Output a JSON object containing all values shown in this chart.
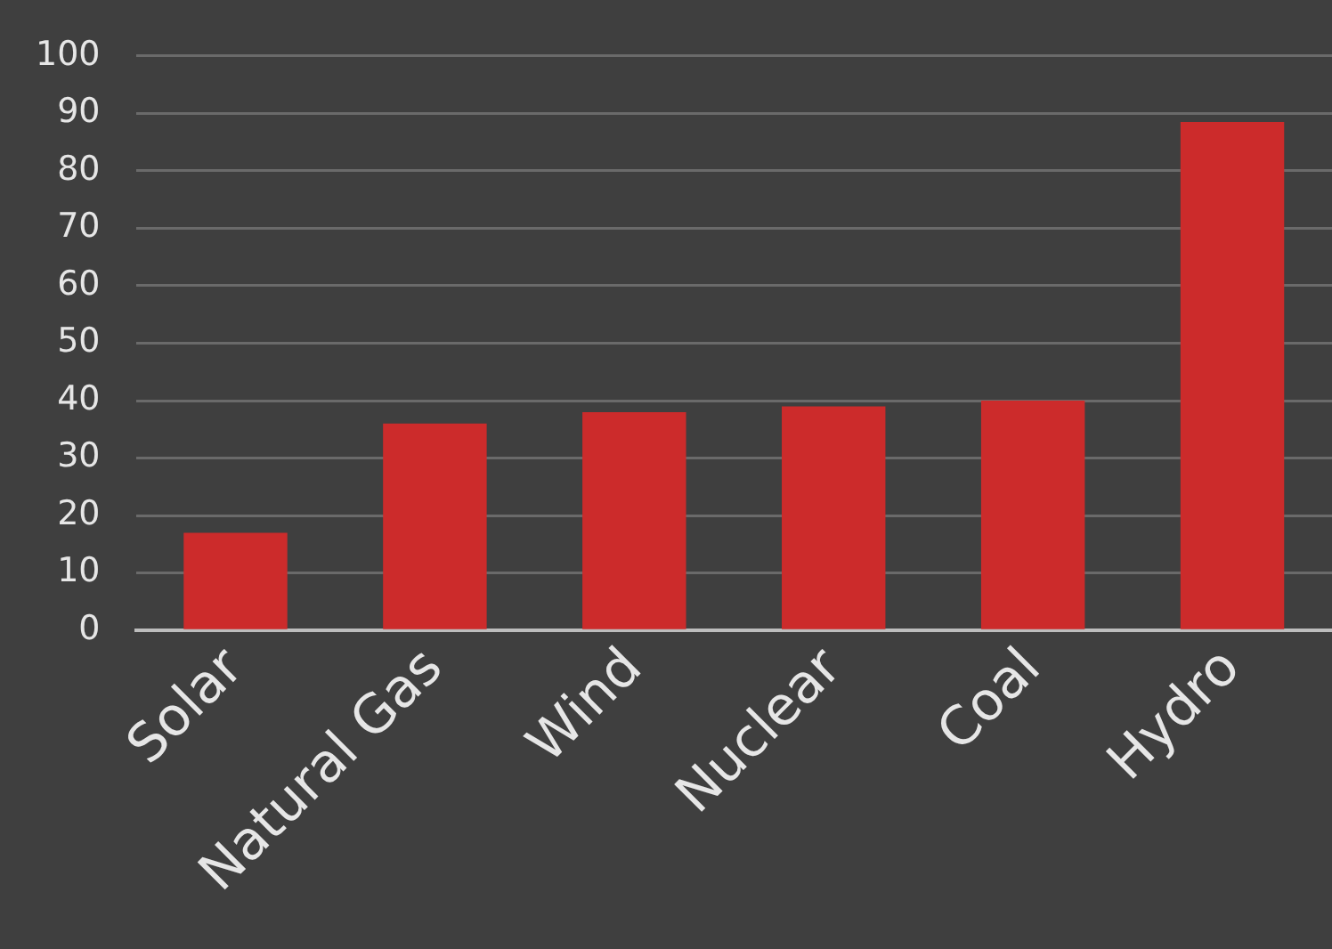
{
  "chart_data": {
    "type": "bar",
    "categories": [
      "Solar",
      "Natural Gas",
      "Wind",
      "Nuclear",
      "Coal",
      "Hydro"
    ],
    "values": [
      17,
      36,
      38,
      39,
      40,
      88.5
    ],
    "color": "#cc2b2b",
    "ylim": [
      0,
      100
    ],
    "yticks": [
      0,
      10,
      20,
      30,
      40,
      50,
      60,
      70,
      80,
      90,
      100
    ],
    "grid": "y",
    "legend": false
  }
}
